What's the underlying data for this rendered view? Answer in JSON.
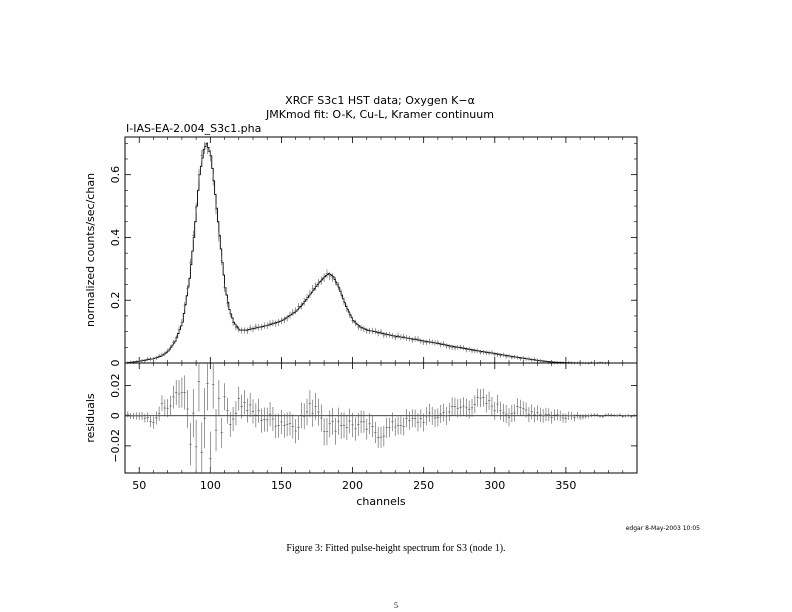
{
  "chart_data": [
    {
      "type": "line",
      "title": "XRCF S3c1 HST data; Oxygen K−α",
      "subtitle": "JMKmod fit: O-K, Cu-L, Kramer continuum",
      "file_label": "I-IAS-EA-2.004_S3c1.pha",
      "xlabel": "",
      "ylabel": "normalized counts/sec/chan",
      "xlim": [
        40,
        400
      ],
      "ylim": [
        0,
        0.72
      ],
      "yticks": [
        "0",
        "0.2",
        "0.4",
        "0.6"
      ],
      "grid": false,
      "series": [
        {
          "style": "data points with error bars + model histogram",
          "x": [
            40,
            50,
            60,
            65,
            70,
            75,
            80,
            85,
            88,
            90,
            92,
            95,
            97,
            100,
            102,
            105,
            108,
            110,
            113,
            116,
            120,
            125,
            130,
            140,
            150,
            160,
            165,
            170,
            175,
            180,
            183,
            186,
            190,
            195,
            200,
            205,
            210,
            220,
            230,
            240,
            250,
            260,
            270,
            280,
            290,
            300,
            310,
            320,
            330,
            340,
            350,
            360,
            370,
            380,
            390,
            400
          ],
          "y": [
            0.0,
            0.006,
            0.014,
            0.022,
            0.038,
            0.07,
            0.13,
            0.27,
            0.4,
            0.5,
            0.6,
            0.68,
            0.7,
            0.66,
            0.58,
            0.45,
            0.32,
            0.24,
            0.17,
            0.13,
            0.105,
            0.105,
            0.11,
            0.12,
            0.135,
            0.165,
            0.19,
            0.22,
            0.25,
            0.275,
            0.285,
            0.275,
            0.24,
            0.18,
            0.135,
            0.115,
            0.105,
            0.095,
            0.085,
            0.078,
            0.07,
            0.062,
            0.053,
            0.045,
            0.037,
            0.03,
            0.022,
            0.015,
            0.008,
            0.003,
            0.001,
            0.0,
            0.0,
            0.0,
            0.0,
            0.0
          ]
        }
      ]
    },
    {
      "type": "scatter",
      "xlabel": "channels",
      "ylabel": "residuals",
      "xlim": [
        40,
        400
      ],
      "ylim": [
        -0.038,
        0.035
      ],
      "xticks": [
        "50",
        "100",
        "150",
        "200",
        "250",
        "300",
        "350"
      ],
      "yticks": [
        "−0.02",
        "0",
        "0.02"
      ],
      "zero_line": true,
      "series": [
        {
          "style": "residuals with error bars",
          "x": [
            45,
            55,
            60,
            65,
            70,
            75,
            80,
            83,
            86,
            88,
            90,
            92,
            94,
            96,
            98,
            100,
            102,
            104,
            106,
            108,
            110,
            115,
            120,
            125,
            130,
            140,
            150,
            160,
            170,
            175,
            180,
            185,
            190,
            200,
            210,
            220,
            230,
            240,
            250,
            260,
            270,
            280,
            290,
            300,
            310,
            320,
            330,
            340,
            350,
            360,
            370,
            380,
            390,
            400
          ],
          "y": [
            0.0,
            -0.002,
            -0.006,
            0.006,
            0.004,
            0.012,
            0.016,
            0.008,
            -0.012,
            0.004,
            -0.02,
            0.012,
            -0.028,
            0.006,
            0.018,
            -0.022,
            0.026,
            -0.01,
            0.014,
            -0.006,
            0.008,
            -0.004,
            0.01,
            0.006,
            0.002,
            -0.002,
            -0.004,
            -0.006,
            0.004,
            0.008,
            -0.006,
            -0.008,
            -0.004,
            -0.006,
            -0.008,
            -0.012,
            -0.006,
            -0.004,
            -0.002,
            0.0,
            0.004,
            0.006,
            0.01,
            0.006,
            0.002,
            0.004,
            0.002,
            0.0,
            0.0,
            0.0,
            0.0,
            0.0,
            0.0,
            0.0
          ],
          "err": [
            0.002,
            0.003,
            0.004,
            0.005,
            0.006,
            0.008,
            0.01,
            0.012,
            0.014,
            0.016,
            0.018,
            0.02,
            0.02,
            0.02,
            0.018,
            0.018,
            0.016,
            0.014,
            0.012,
            0.01,
            0.009,
            0.008,
            0.008,
            0.008,
            0.008,
            0.008,
            0.008,
            0.008,
            0.009,
            0.009,
            0.009,
            0.009,
            0.009,
            0.008,
            0.007,
            0.007,
            0.006,
            0.006,
            0.006,
            0.006,
            0.006,
            0.006,
            0.006,
            0.006,
            0.006,
            0.005,
            0.005,
            0.004,
            0.003,
            0.002,
            0.001,
            0.001,
            0.001,
            0.001
          ]
        }
      ]
    }
  ],
  "stamp": "edgar   8-May-2003 10:05",
  "caption": "Figure 3: Fitted pulse-height spectrum for S3 (node 1).",
  "page_number": "5"
}
